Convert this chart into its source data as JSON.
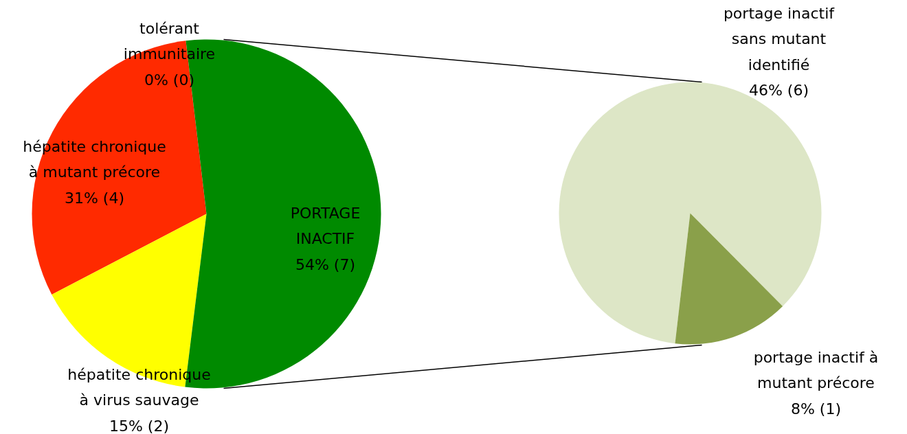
{
  "chart_data": [
    {
      "type": "pie",
      "categories": [
        "tolérant immunitaire",
        "hépatite chronique à mutant précore",
        "hépatite chronique à virus sauvage",
        "PORTAGE INACTIF"
      ],
      "values": [
        0,
        4,
        2,
        7
      ],
      "colors": [
        null,
        "#ff2a00",
        "#ffff00",
        "#008a00"
      ],
      "value_labels": [
        "0% (0)",
        "31% (4)",
        "15% (2)",
        "54% (7)"
      ]
    },
    {
      "type": "pie",
      "categories": [
        "portage inactif sans mutant identifié",
        "portage inactif à mutant précore"
      ],
      "values": [
        6,
        1
      ],
      "colors": [
        "#dde6c6",
        "#8aa04a"
      ],
      "value_labels": [
        "46% (6)",
        "8% (1)"
      ]
    }
  ]
}
